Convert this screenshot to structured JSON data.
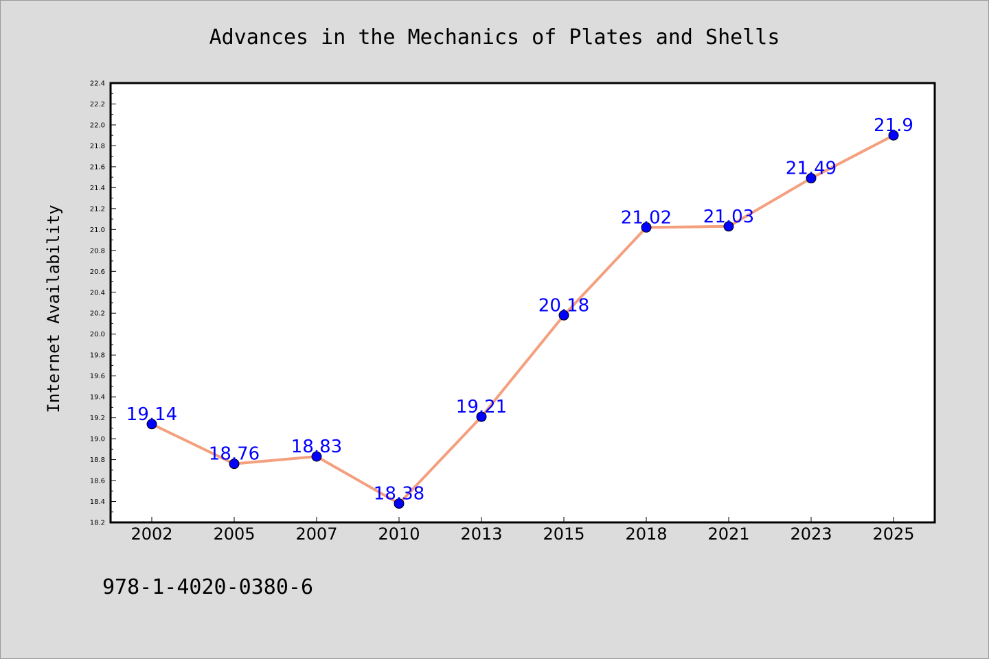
{
  "chart_data": {
    "type": "line",
    "title": "Advances in the Mechanics of Plates and Shells",
    "xlabel": "",
    "ylabel": "Internet Availability",
    "categories": [
      "2002",
      "2005",
      "2007",
      "2010",
      "2013",
      "2015",
      "2018",
      "2021",
      "2023",
      "2025"
    ],
    "series": [
      {
        "values": [
          19.14,
          18.76,
          18.83,
          18.38,
          19.21,
          20.18,
          21.02,
          21.03,
          21.49,
          21.9
        ],
        "line_color": "#f4a07f",
        "marker_color": "#0000ff"
      }
    ],
    "ylim": [
      18.2,
      22.4
    ],
    "yticks": [
      "18.2",
      "18.4",
      "18.6",
      "18.8",
      "19.0",
      "19.2",
      "19.4",
      "19.6",
      "19.8",
      "20.0",
      "20.2",
      "20.4",
      "20.6",
      "20.8",
      "21.0",
      "21.2",
      "21.4",
      "21.6",
      "21.8",
      "22.0",
      "22.2",
      "22.4"
    ],
    "data_labels": [
      "19.14",
      "18.76",
      "18.83",
      "18.38",
      "19.21",
      "20.18",
      "21.02",
      "21.03",
      "21.49",
      "21.9"
    ],
    "grid": false,
    "legend": "none"
  },
  "annotation": "978-1-4020-0380-6",
  "colors": {
    "background": "#dcdcdc",
    "plot_background": "#ffffff",
    "line": "#f4a07f",
    "marker": "#0000ff",
    "data_label": "#0000ff"
  }
}
